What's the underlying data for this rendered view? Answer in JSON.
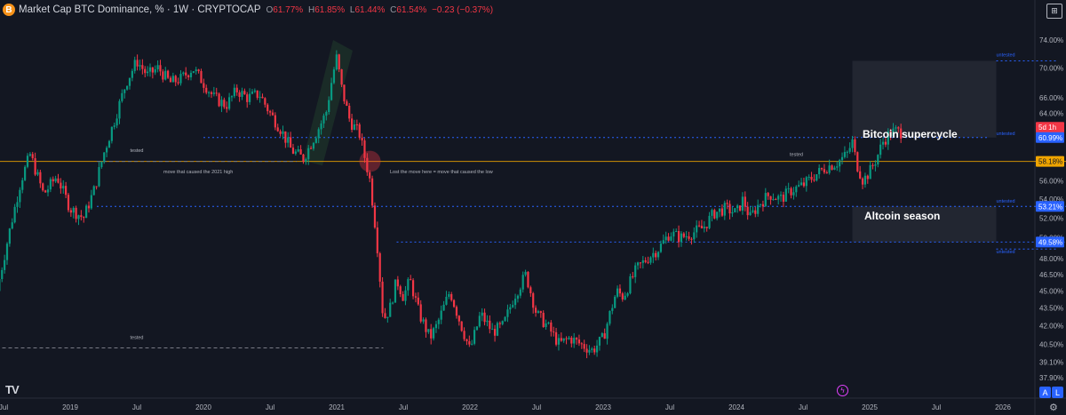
{
  "header": {
    "logo": "B",
    "symbol": "Market Cap BTC Dominance, %",
    "interval": "1W",
    "source": "CRYPTOCAP",
    "open": "61.77%",
    "high": "61.85%",
    "low": "61.44%",
    "close": "61.54%",
    "change": "−0.23 (−0.37%)"
  },
  "toolbar": {
    "snapshot_label": "⊞",
    "auto_label": "A",
    "log_label": "L",
    "tv_logo": "TV",
    "bolt": "ϟ",
    "settings": "⚙"
  },
  "colors": {
    "up": "#089981",
    "down": "#f23645",
    "bg": "#131722",
    "grid": "#1e222d",
    "blue": "#2962ff",
    "orange": "#f0a500"
  },
  "chart_data": {
    "type": "candlestick",
    "title": "Market Cap BTC Dominance, % · 1W · CRYPTOCAP",
    "ylabel": "%",
    "scale": "log",
    "ylim": [
      36.8,
      77.0
    ],
    "xlim": [
      "2018-06",
      "2026-09"
    ],
    "x_ticks": [
      {
        "label": "Jul",
        "t": 2018.5
      },
      {
        "label": "2019",
        "t": 2019.0
      },
      {
        "label": "Jul",
        "t": 2019.5
      },
      {
        "label": "2020",
        "t": 2020.0
      },
      {
        "label": "Jul",
        "t": 2020.5
      },
      {
        "label": "2021",
        "t": 2021.0
      },
      {
        "label": "Jul",
        "t": 2021.5
      },
      {
        "label": "2022",
        "t": 2022.0
      },
      {
        "label": "Jul",
        "t": 2022.5
      },
      {
        "label": "2023",
        "t": 2023.0
      },
      {
        "label": "Jul",
        "t": 2023.5
      },
      {
        "label": "2024",
        "t": 2024.0
      },
      {
        "label": "Jul",
        "t": 2024.5
      },
      {
        "label": "2025",
        "t": 2025.0
      },
      {
        "label": "Jul",
        "t": 2025.5
      },
      {
        "label": "2026",
        "t": 2026.0
      },
      {
        "label": "Jul",
        "t": 2026.5
      }
    ],
    "y_ticks": [
      "74.00%",
      "70.00%",
      "66.00%",
      "64.00%",
      "62.00%",
      "56.00%",
      "54.00%",
      "52.00%",
      "50.00%",
      "48.00%",
      "46.50%",
      "45.00%",
      "43.50%",
      "42.00%",
      "40.50%",
      "39.10%",
      "37.90%"
    ],
    "y_tick_values": [
      74,
      70,
      66,
      64,
      62,
      56,
      54,
      52,
      50,
      48,
      46.5,
      45,
      43.5,
      42,
      40.5,
      39.1,
      37.9
    ],
    "price_labels": [
      {
        "value": 62.25,
        "text": "5d 1h",
        "color": "#f23645"
      },
      {
        "value": 60.99,
        "text": "60.99%",
        "color": "#2962ff"
      },
      {
        "value": 58.18,
        "text": "58.18%",
        "color": "#f0a500"
      },
      {
        "value": 53.21,
        "text": "53.21%",
        "color": "#2962ff"
      },
      {
        "value": 49.58,
        "text": "49.58%",
        "color": "#2962ff"
      }
    ],
    "close_path": [
      [
        2018.45,
        45.0
      ],
      [
        2018.55,
        51.0
      ],
      [
        2018.63,
        56.0
      ],
      [
        2018.7,
        59.0
      ],
      [
        2018.8,
        54.5
      ],
      [
        2018.9,
        56.5
      ],
      [
        2019.0,
        53.0
      ],
      [
        2019.1,
        52.0
      ],
      [
        2019.18,
        55.0
      ],
      [
        2019.25,
        59.0
      ],
      [
        2019.33,
        63.0
      ],
      [
        2019.42,
        68.0
      ],
      [
        2019.5,
        71.0
      ],
      [
        2019.58,
        69.0
      ],
      [
        2019.66,
        70.0
      ],
      [
        2019.75,
        68.0
      ],
      [
        2019.83,
        68.5
      ],
      [
        2019.92,
        70.0
      ],
      [
        2020.0,
        68.0
      ],
      [
        2020.08,
        66.0
      ],
      [
        2020.17,
        65.0
      ],
      [
        2020.25,
        67.0
      ],
      [
        2020.33,
        66.0
      ],
      [
        2020.42,
        66.5
      ],
      [
        2020.5,
        64.0
      ],
      [
        2020.58,
        62.0
      ],
      [
        2020.66,
        59.5
      ],
      [
        2020.75,
        58.5
      ],
      [
        2020.83,
        61.0
      ],
      [
        2020.92,
        64.0
      ],
      [
        2020.97,
        69.0
      ],
      [
        2021.0,
        71.5
      ],
      [
        2021.04,
        67.0
      ],
      [
        2021.1,
        63.0
      ],
      [
        2021.17,
        61.5
      ],
      [
        2021.25,
        56.0
      ],
      [
        2021.3,
        50.0
      ],
      [
        2021.35,
        42.5
      ],
      [
        2021.4,
        43.5
      ],
      [
        2021.45,
        46.0
      ],
      [
        2021.5,
        44.5
      ],
      [
        2021.55,
        46.0
      ],
      [
        2021.62,
        43.0
      ],
      [
        2021.7,
        41.0
      ],
      [
        2021.75,
        42.0
      ],
      [
        2021.85,
        45.0
      ],
      [
        2021.92,
        42.5
      ],
      [
        2022.0,
        40.0
      ],
      [
        2022.08,
        43.0
      ],
      [
        2022.17,
        41.5
      ],
      [
        2022.25,
        42.0
      ],
      [
        2022.33,
        44.5
      ],
      [
        2022.42,
        46.5
      ],
      [
        2022.5,
        43.0
      ],
      [
        2022.58,
        42.0
      ],
      [
        2022.67,
        40.5
      ],
      [
        2022.75,
        41.0
      ],
      [
        2022.83,
        40.5
      ],
      [
        2022.92,
        40.0
      ],
      [
        2023.0,
        41.0
      ],
      [
        2023.05,
        43.0
      ],
      [
        2023.1,
        45.0
      ],
      [
        2023.15,
        44.5
      ],
      [
        2023.25,
        47.0
      ],
      [
        2023.33,
        48.0
      ],
      [
        2023.42,
        49.0
      ],
      [
        2023.5,
        50.5
      ],
      [
        2023.58,
        50.0
      ],
      [
        2023.67,
        50.5
      ],
      [
        2023.75,
        51.0
      ],
      [
        2023.83,
        52.5
      ],
      [
        2023.92,
        53.0
      ],
      [
        2024.0,
        52.5
      ],
      [
        2024.05,
        54.0
      ],
      [
        2024.1,
        52.0
      ],
      [
        2024.17,
        53.5
      ],
      [
        2024.25,
        54.5
      ],
      [
        2024.33,
        54.0
      ],
      [
        2024.42,
        55.0
      ],
      [
        2024.5,
        55.5
      ],
      [
        2024.58,
        56.5
      ],
      [
        2024.67,
        57.5
      ],
      [
        2024.75,
        58.0
      ],
      [
        2024.83,
        59.0
      ],
      [
        2024.87,
        60.5
      ],
      [
        2024.9,
        58.0
      ],
      [
        2024.95,
        56.0
      ],
      [
        2025.0,
        57.0
      ],
      [
        2025.05,
        58.5
      ],
      [
        2025.1,
        60.5
      ],
      [
        2025.15,
        61.5
      ],
      [
        2025.2,
        61.8
      ],
      [
        2025.25,
        61.54
      ]
    ],
    "horizontal_levels": [
      {
        "value": 60.99,
        "color": "#2962ff",
        "style": "dotted",
        "label": "untested",
        "t_from": 2020.0,
        "t_to": 2025.9
      },
      {
        "value": 58.18,
        "color": "#f0a500",
        "style": "solid",
        "label": "",
        "t_from": 2018.35,
        "t_to": 2026.8
      },
      {
        "value": 58.18,
        "color": "#787b86",
        "style": "dashed",
        "label": "tested",
        "t_from": 2019.2,
        "t_to": 2020.7
      },
      {
        "value": 53.21,
        "color": "#2962ff",
        "style": "dotted",
        "label": "untested",
        "t_from": 2019.2,
        "t_to": 2026.8
      },
      {
        "value": 49.58,
        "color": "#2962ff",
        "style": "dotted",
        "label": "",
        "t_from": 2021.45,
        "t_to": 2026.8
      },
      {
        "value": 40.2,
        "color": "#787b86",
        "style": "dashed",
        "label": "tested",
        "t_from": 2018.35,
        "t_to": 2021.35
      },
      {
        "value": 71.0,
        "color": "#2962ff",
        "style": "dotted",
        "label": "untested",
        "t_from": 2025.95,
        "t_to": 2026.4
      },
      {
        "value": 48.9,
        "color": "#2962ff",
        "style": "dotted",
        "label": "untested",
        "t_from": 2025.95,
        "t_to": 2026.4
      }
    ],
    "zones": [
      {
        "label": "Bitcoin supercycle",
        "t_from": 2024.87,
        "t_to": 2025.95,
        "y_from": 60.99,
        "y_to": 71.0
      },
      {
        "label": "Altcoin season",
        "t_from": 2024.87,
        "t_to": 2025.95,
        "y_from": 49.58,
        "y_to": 53.21
      }
    ],
    "annotations": [
      {
        "text": "tested",
        "t": 2019.45,
        "y": 59.3
      },
      {
        "text": "move that caused the 2021 high",
        "t": 2019.7,
        "y": 56.8
      },
      {
        "text": "Lost the move here = move that caused the low",
        "t": 2021.4,
        "y": 56.8
      },
      {
        "text": "tested",
        "t": 2024.4,
        "y": 58.8
      },
      {
        "text": "tested",
        "t": 2019.45,
        "y": 40.9
      },
      {
        "text": "untested",
        "t": 2025.95,
        "y": 61.3
      },
      {
        "text": "untested",
        "t": 2025.95,
        "y": 53.6
      },
      {
        "text": "untested",
        "t": 2025.95,
        "y": 71.6
      },
      {
        "text": "untested",
        "t": 2025.95,
        "y": 48.5
      }
    ],
    "highlight_channel": {
      "t_from": 2020.8,
      "t_to": 2021.0,
      "y_bottom": 58.3,
      "y_top": 74.0
    },
    "highlight_circle": {
      "t": 2021.25,
      "y": 58.18
    }
  }
}
